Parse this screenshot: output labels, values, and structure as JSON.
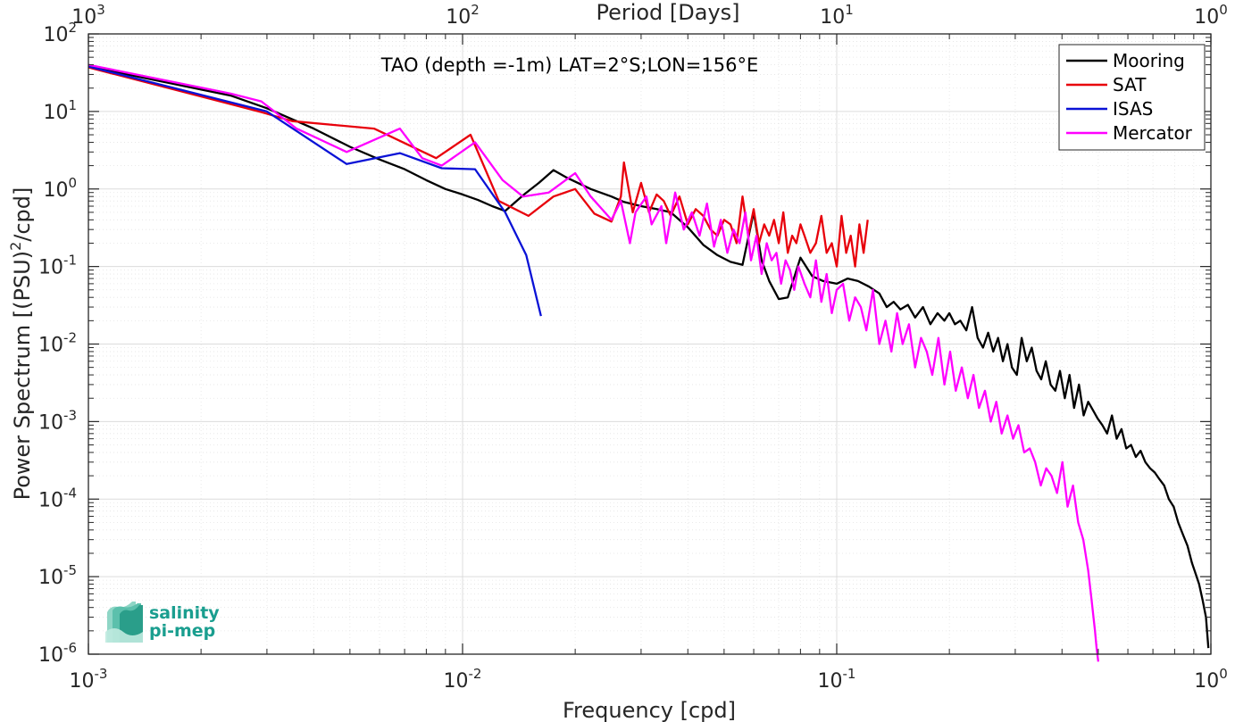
{
  "chart_data": {
    "type": "line",
    "title": "TAO (depth =-1m) LAT=2°S;LON=156°E",
    "xlabel": "Frequency [cpd]",
    "ylabel": "Power Spectrum [(PSU)²/cpd]",
    "top_xlabel": "Period [Days]",
    "x_scale": "log",
    "y_scale": "log",
    "xlim": [
      0.001,
      1
    ],
    "ylim": [
      1e-06,
      100
    ],
    "grid": true,
    "minor_grid": true,
    "legend_position": "top-right",
    "x_ticks": [
      {
        "base": "10",
        "exp": "-3"
      },
      {
        "base": "10",
        "exp": "-2"
      },
      {
        "base": "10",
        "exp": "-1"
      },
      {
        "base": "10",
        "exp": "0"
      }
    ],
    "top_ticks": [
      {
        "base": "10",
        "exp": "3"
      },
      {
        "base": "10",
        "exp": "2"
      },
      {
        "base": "10",
        "exp": "1"
      },
      {
        "base": "10",
        "exp": "0"
      }
    ],
    "y_ticks": [
      {
        "base": "10",
        "exp": "2"
      },
      {
        "base": "10",
        "exp": "1"
      },
      {
        "base": "10",
        "exp": "0"
      },
      {
        "base": "10",
        "exp": "-1"
      },
      {
        "base": "10",
        "exp": "-2"
      },
      {
        "base": "10",
        "exp": "-3"
      },
      {
        "base": "10",
        "exp": "-4"
      },
      {
        "base": "10",
        "exp": "-5"
      },
      {
        "base": "10",
        "exp": "-6"
      }
    ],
    "series": [
      {
        "name": "Mooring",
        "color": "#000000",
        "x": [
          0.001,
          0.0024,
          0.003,
          0.004,
          0.005,
          0.006,
          0.007,
          0.008,
          0.009,
          0.01,
          0.011,
          0.012,
          0.013,
          0.0146,
          0.016,
          0.0175,
          0.019,
          0.022,
          0.025,
          0.027,
          0.03,
          0.033,
          0.036,
          0.04,
          0.044,
          0.048,
          0.052,
          0.056,
          0.06,
          0.063,
          0.066,
          0.07,
          0.074,
          0.08,
          0.086,
          0.092,
          0.1,
          0.107,
          0.114,
          0.122,
          0.13,
          0.136,
          0.142,
          0.148,
          0.155,
          0.162,
          0.17,
          0.178,
          0.186,
          0.194,
          0.2,
          0.207,
          0.214,
          0.222,
          0.23,
          0.238,
          0.246,
          0.254,
          0.262,
          0.27,
          0.278,
          0.286,
          0.294,
          0.303,
          0.312,
          0.322,
          0.332,
          0.342,
          0.352,
          0.362,
          0.373,
          0.384,
          0.395,
          0.407,
          0.419,
          0.431,
          0.444,
          0.457,
          0.47,
          0.484,
          0.498,
          0.513,
          0.528,
          0.544,
          0.56,
          0.577,
          0.594,
          0.612,
          0.63,
          0.649,
          0.668,
          0.688,
          0.708,
          0.729,
          0.75,
          0.772,
          0.795,
          0.818,
          0.842,
          0.866,
          0.89,
          0.91,
          0.93,
          0.95,
          0.97,
          0.985
        ],
        "y": [
          38,
          16,
          11,
          6,
          3.5,
          2.4,
          1.8,
          1.3,
          1.0,
          0.85,
          0.72,
          0.6,
          0.52,
          0.85,
          1.2,
          1.75,
          1.4,
          1.0,
          0.8,
          0.68,
          0.6,
          0.55,
          0.5,
          0.32,
          0.19,
          0.14,
          0.115,
          0.105,
          0.5,
          0.12,
          0.065,
          0.038,
          0.04,
          0.13,
          0.075,
          0.065,
          0.06,
          0.07,
          0.065,
          0.055,
          0.045,
          0.03,
          0.035,
          0.028,
          0.032,
          0.022,
          0.03,
          0.018,
          0.025,
          0.02,
          0.025,
          0.018,
          0.02,
          0.015,
          0.03,
          0.012,
          0.009,
          0.014,
          0.008,
          0.012,
          0.006,
          0.01,
          0.005,
          0.004,
          0.012,
          0.006,
          0.009,
          0.0045,
          0.0035,
          0.006,
          0.003,
          0.0025,
          0.0045,
          0.002,
          0.004,
          0.0015,
          0.003,
          0.0012,
          0.0018,
          0.0014,
          0.0011,
          0.0009,
          0.0007,
          0.0012,
          0.0006,
          0.0008,
          0.00045,
          0.0005,
          0.00035,
          0.00042,
          0.0003,
          0.00025,
          0.00022,
          0.00018,
          0.00015,
          0.0001,
          8e-05,
          5e-05,
          3.5e-05,
          2.5e-05,
          1.5e-05,
          1.1e-05,
          8e-06,
          5e-06,
          3e-06,
          1.2e-06
        ]
      },
      {
        "name": "SAT",
        "color": "#e8000b",
        "x": [
          0.001,
          0.0029,
          0.0035,
          0.0058,
          0.0085,
          0.0105,
          0.0125,
          0.015,
          0.0175,
          0.02,
          0.0225,
          0.025,
          0.0265,
          0.027,
          0.0285,
          0.03,
          0.0315,
          0.033,
          0.0345,
          0.036,
          0.038,
          0.04,
          0.042,
          0.044,
          0.046,
          0.048,
          0.05,
          0.052,
          0.054,
          0.056,
          0.058,
          0.06,
          0.062,
          0.064,
          0.066,
          0.068,
          0.07,
          0.072,
          0.074,
          0.076,
          0.078,
          0.08,
          0.082,
          0.085,
          0.088,
          0.091,
          0.094,
          0.097,
          0.1,
          0.103,
          0.106,
          0.109,
          0.112,
          0.115,
          0.118,
          0.121
        ],
        "y": [
          37,
          9.8,
          7.5,
          6,
          2.5,
          5,
          0.7,
          0.45,
          0.8,
          1.0,
          0.48,
          0.38,
          0.8,
          2.2,
          0.5,
          1.2,
          0.5,
          0.85,
          0.7,
          0.45,
          0.8,
          0.35,
          0.55,
          0.45,
          0.3,
          0.25,
          0.4,
          0.35,
          0.2,
          0.8,
          0.25,
          0.55,
          0.2,
          0.35,
          0.25,
          0.4,
          0.2,
          0.5,
          0.15,
          0.25,
          0.2,
          0.35,
          0.25,
          0.15,
          0.2,
          0.45,
          0.15,
          0.2,
          0.1,
          0.45,
          0.15,
          0.25,
          0.1,
          0.35,
          0.15,
          0.4
        ]
      },
      {
        "name": "ISAS",
        "color": "#0a12d6",
        "x": [
          0.001,
          0.003,
          0.0049,
          0.0068,
          0.0088,
          0.0108,
          0.013,
          0.0148,
          0.0162
        ],
        "y": [
          38,
          10,
          2.1,
          2.9,
          1.85,
          1.8,
          0.5,
          0.14,
          0.023
        ]
      },
      {
        "name": "Mercator",
        "color": "#ff00ff",
        "x": [
          0.001,
          0.0024,
          0.0029,
          0.0036,
          0.0049,
          0.0068,
          0.0078,
          0.0088,
          0.0108,
          0.0128,
          0.0145,
          0.017,
          0.02,
          0.022,
          0.024,
          0.025,
          0.0265,
          0.028,
          0.029,
          0.031,
          0.032,
          0.034,
          0.035,
          0.037,
          0.039,
          0.041,
          0.043,
          0.045,
          0.047,
          0.049,
          0.051,
          0.053,
          0.055,
          0.057,
          0.059,
          0.061,
          0.063,
          0.065,
          0.067,
          0.069,
          0.071,
          0.073,
          0.075,
          0.077,
          0.079,
          0.082,
          0.085,
          0.088,
          0.091,
          0.094,
          0.097,
          0.1,
          0.104,
          0.108,
          0.112,
          0.116,
          0.12,
          0.125,
          0.13,
          0.135,
          0.14,
          0.145,
          0.15,
          0.156,
          0.162,
          0.168,
          0.174,
          0.18,
          0.187,
          0.194,
          0.201,
          0.208,
          0.216,
          0.224,
          0.232,
          0.24,
          0.249,
          0.258,
          0.267,
          0.276,
          0.286,
          0.296,
          0.306,
          0.317,
          0.328,
          0.339,
          0.351,
          0.363,
          0.375,
          0.388,
          0.401,
          0.414,
          0.428,
          0.442,
          0.456,
          0.47,
          0.48,
          0.49,
          0.495,
          0.5
        ],
        "y": [
          40,
          17,
          13.5,
          6,
          3,
          6,
          2.5,
          2.0,
          4,
          1.3,
          0.8,
          0.9,
          1.6,
          0.8,
          0.5,
          0.4,
          0.7,
          0.2,
          0.5,
          0.8,
          0.35,
          0.6,
          0.2,
          0.9,
          0.3,
          0.5,
          0.25,
          0.65,
          0.18,
          0.4,
          0.15,
          0.3,
          0.2,
          0.5,
          0.12,
          0.25,
          0.08,
          0.2,
          0.12,
          0.15,
          0.06,
          0.12,
          0.09,
          0.05,
          0.1,
          0.06,
          0.04,
          0.12,
          0.035,
          0.08,
          0.025,
          0.05,
          0.06,
          0.02,
          0.04,
          0.03,
          0.015,
          0.05,
          0.01,
          0.02,
          0.008,
          0.025,
          0.01,
          0.018,
          0.005,
          0.012,
          0.008,
          0.004,
          0.012,
          0.003,
          0.008,
          0.0025,
          0.005,
          0.002,
          0.004,
          0.0015,
          0.0025,
          0.001,
          0.0018,
          0.0007,
          0.0012,
          0.0006,
          0.0009,
          0.0004,
          0.00045,
          0.0003,
          0.00015,
          0.00025,
          0.0002,
          0.00012,
          0.0003,
          8e-05,
          0.00015,
          5e-05,
          3e-05,
          1.2e-05,
          5e-06,
          2e-06,
          1.2e-06,
          8e-07
        ]
      }
    ]
  },
  "logo": {
    "line1": "salinity",
    "line2": "pi-mep"
  }
}
